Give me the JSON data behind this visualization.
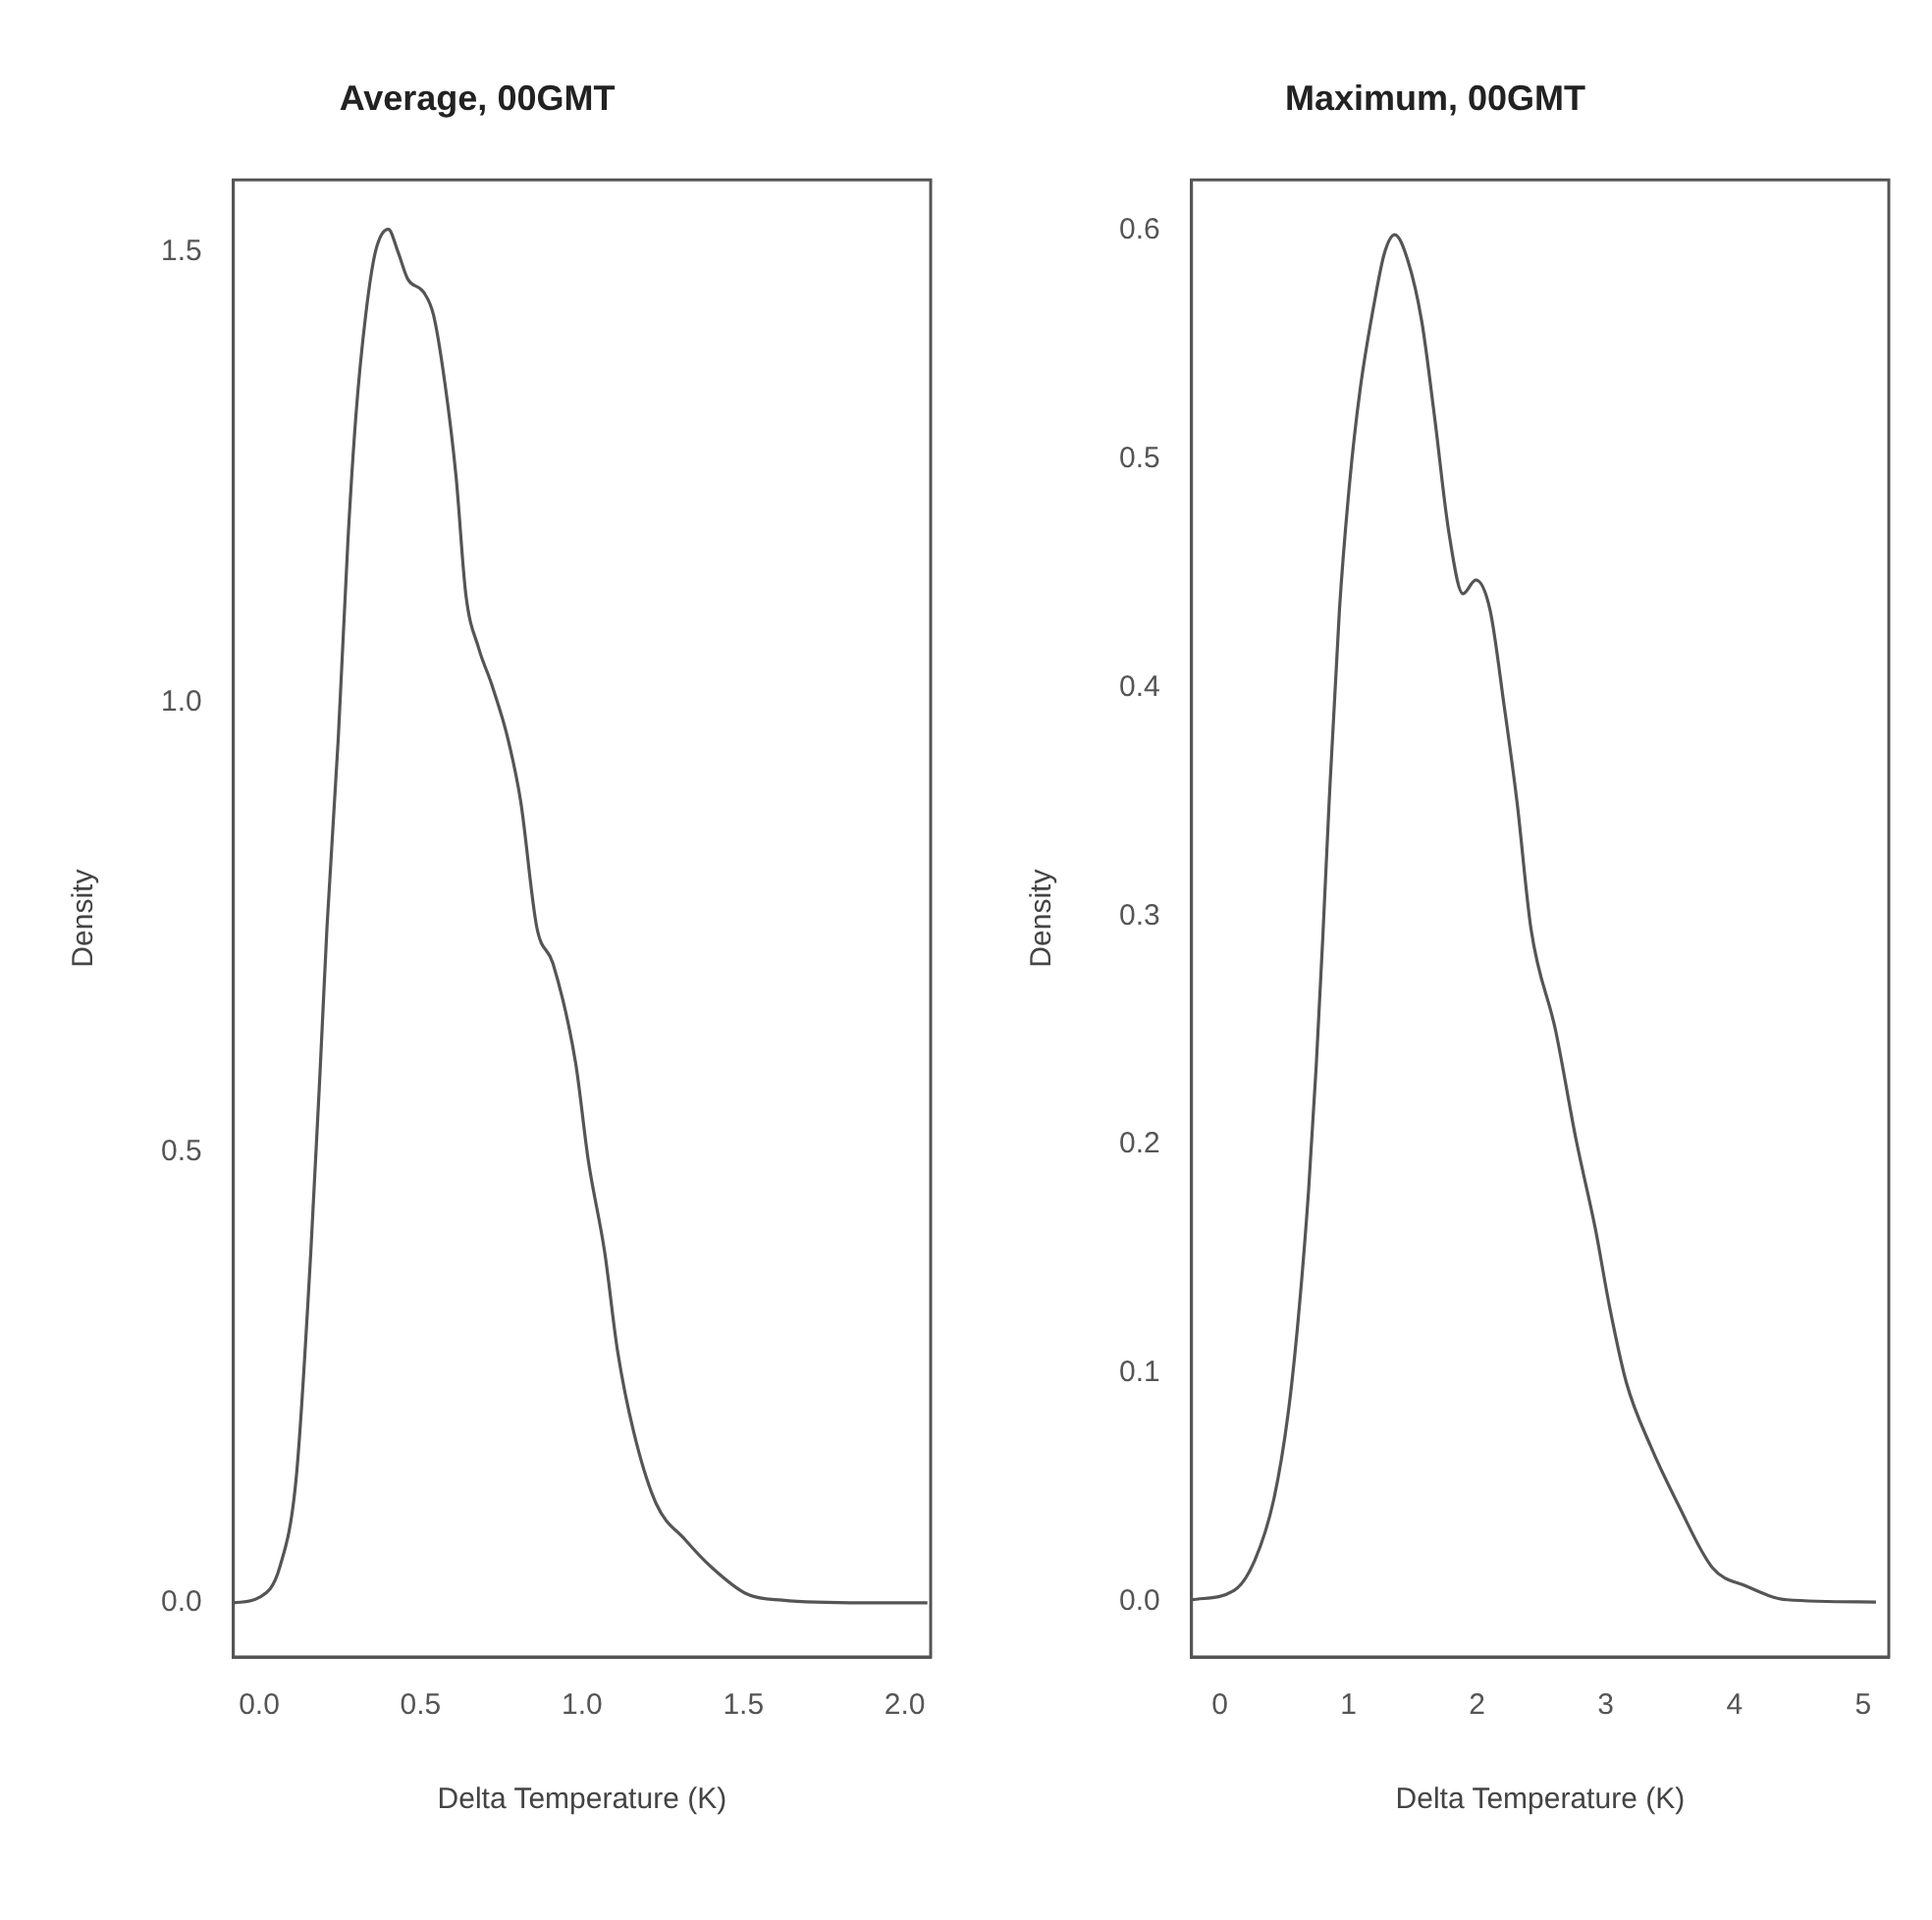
{
  "chart_data": [
    {
      "type": "line",
      "title": "Average, 00GMT",
      "xlabel": "Delta Temperature (K)",
      "ylabel": "Density",
      "xlim": [
        -0.08,
        2.08
      ],
      "ylim": [
        -0.06,
        1.58
      ],
      "xticks": [
        {
          "value": 0,
          "label": "0.0"
        },
        {
          "value": 0.5,
          "label": "0.5"
        },
        {
          "value": 1,
          "label": "1.0"
        },
        {
          "value": 1.5,
          "label": "1.5"
        },
        {
          "value": 2,
          "label": "2.0"
        }
      ],
      "yticks": [
        {
          "value": 0,
          "label": "0.0"
        },
        {
          "value": 0.5,
          "label": "0.5"
        },
        {
          "value": 1,
          "label": "1.0"
        },
        {
          "value": 1.5,
          "label": "1.5"
        }
      ],
      "marker": "none",
      "line_style": "solid",
      "series": [
        {
          "color": "#555555",
          "x": [
            -0.08,
            0,
            0.064,
            0.115,
            0.16,
            0.19,
            0.21,
            0.245,
            0.275,
            0.3,
            0.33,
            0.36,
            0.4,
            0.43,
            0.46,
            0.51,
            0.54,
            0.575,
            0.61,
            0.64,
            0.68,
            0.72,
            0.77,
            0.81,
            0.86,
            0.91,
            0.98,
            1.02,
            1.07,
            1.11,
            1.16,
            1.23,
            1.32,
            1.4,
            1.51,
            1.62,
            1.87,
            2.07
          ],
          "values": [
            0,
            0.006,
            0.04,
            0.14,
            0.39,
            0.6,
            0.75,
            0.96,
            1.18,
            1.32,
            1.43,
            1.5,
            1.525,
            1.5,
            1.47,
            1.455,
            1.43,
            1.355,
            1.25,
            1.12,
            1.06,
            1.02,
            0.96,
            0.89,
            0.75,
            0.71,
            0.6,
            0.49,
            0.39,
            0.28,
            0.19,
            0.11,
            0.07,
            0.04,
            0.01,
            0.003,
            0,
            0
          ]
        }
      ]
    },
    {
      "type": "line",
      "title": "Maximum, 00GMT",
      "xlabel": "Delta Temperature (K)",
      "ylabel": "Density",
      "xlim": [
        -0.22,
        5.2
      ],
      "ylim": [
        -0.024,
        0.622
      ],
      "xticks": [
        0,
        1,
        2,
        3,
        4,
        5
      ],
      "yticks": [
        {
          "value": 0,
          "label": "0.0"
        },
        {
          "value": 0.1,
          "label": "0.1"
        },
        {
          "value": 0.2,
          "label": "0.2"
        },
        {
          "value": 0.3,
          "label": "0.3"
        },
        {
          "value": 0.4,
          "label": "0.4"
        },
        {
          "value": 0.5,
          "label": "0.5"
        },
        {
          "value": 0.6,
          "label": "0.6"
        }
      ],
      "marker": "none",
      "line_style": "solid",
      "series": [
        {
          "color": "#555555",
          "x": [
            -0.22,
            0.11,
            0.27,
            0.42,
            0.53,
            0.61,
            0.69,
            0.75,
            0.8,
            0.85,
            0.93,
            1.01,
            1.09,
            1.2,
            1.28,
            1.36,
            1.46,
            1.57,
            1.67,
            1.78,
            1.89,
            1.99,
            2.1,
            2.21,
            2.31,
            2.42,
            2.61,
            2.77,
            2.92,
            3.03,
            3.16,
            3.35,
            3.56,
            3.83,
            4.09,
            4.41,
            5.1
          ],
          "values": [
            0.001,
            0.005,
            0.018,
            0.045,
            0.082,
            0.124,
            0.18,
            0.235,
            0.29,
            0.35,
            0.434,
            0.49,
            0.53,
            0.568,
            0.59,
            0.598,
            0.587,
            0.56,
            0.518,
            0.468,
            0.441,
            0.447,
            0.434,
            0.392,
            0.35,
            0.294,
            0.25,
            0.202,
            0.163,
            0.129,
            0.096,
            0.068,
            0.043,
            0.015,
            0.007,
            0.001,
            0
          ]
        }
      ]
    }
  ]
}
